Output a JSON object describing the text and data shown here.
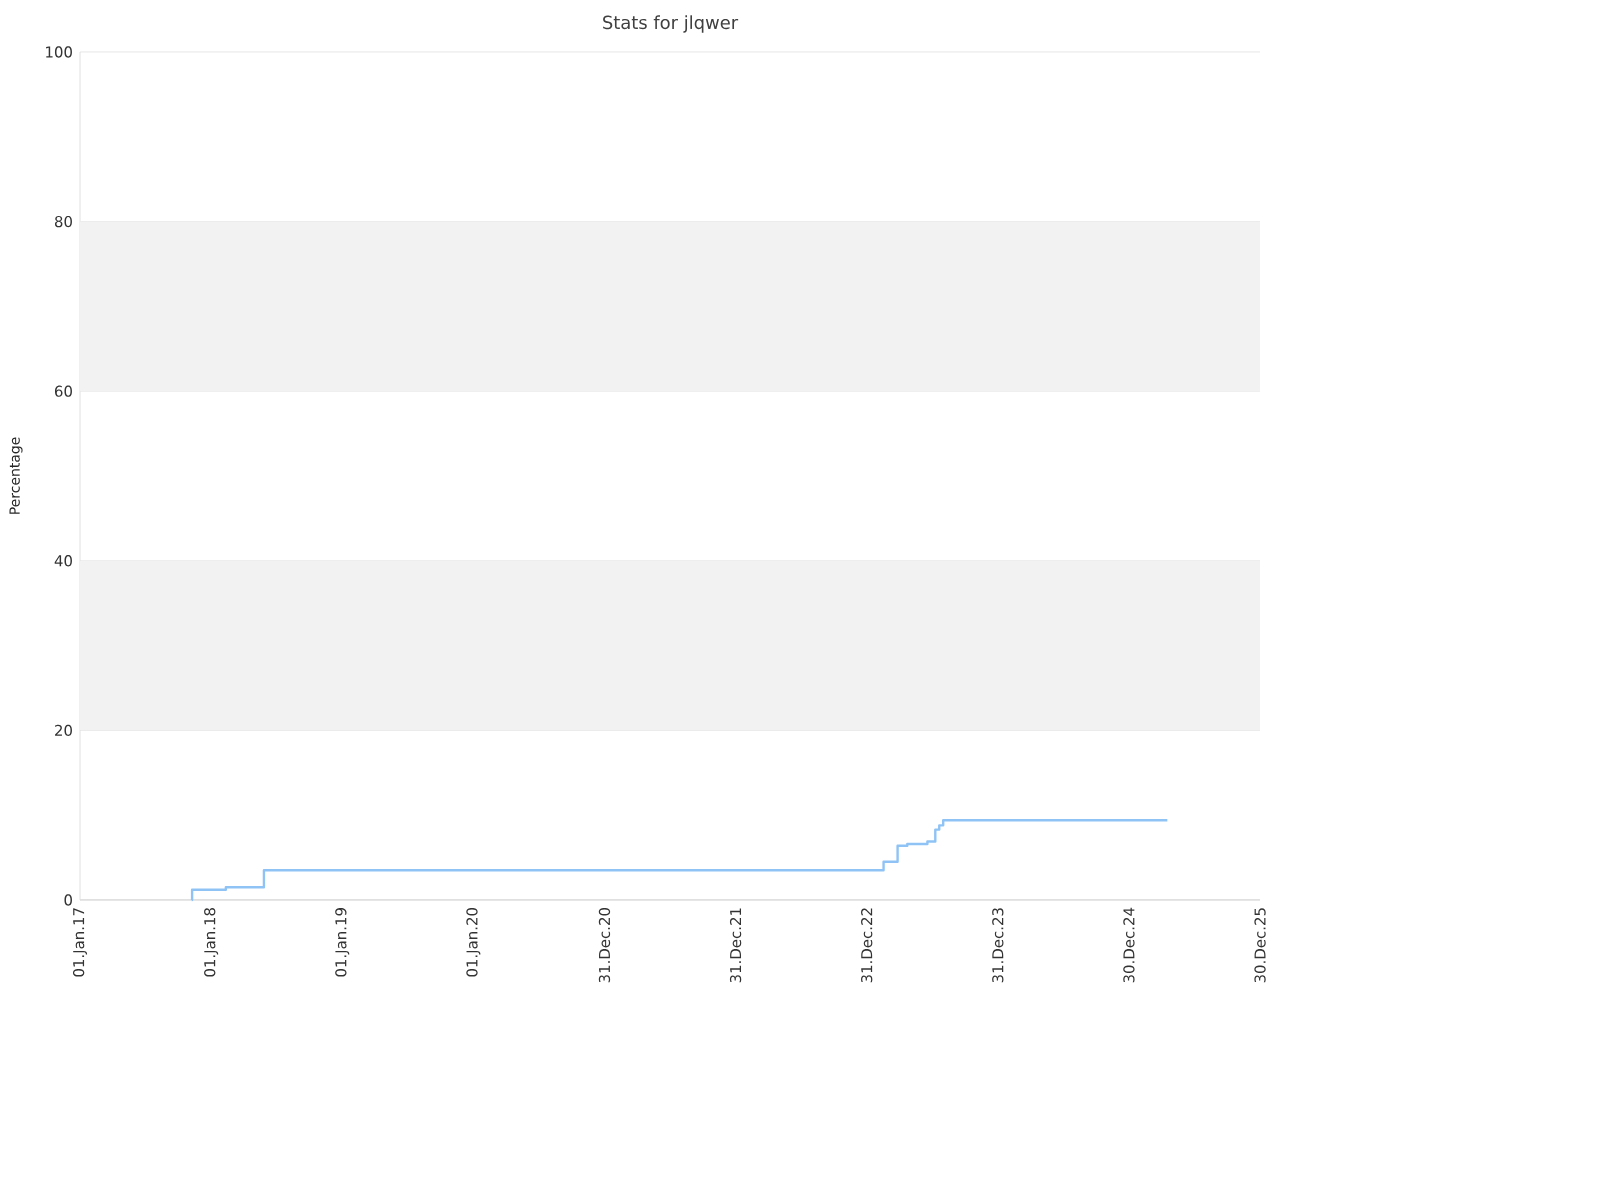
{
  "chart_data": {
    "type": "step",
    "title": "Stats for jlqwer",
    "ylabel": "Percentage",
    "x": [
      "2017-11-08",
      "2017-11-09",
      "2018-02-11",
      "2018-05-28",
      "2023-02-16",
      "2023-03-27",
      "2023-04-23",
      "2023-06-18",
      "2023-07-10",
      "2023-07-21",
      "2023-08-01",
      "2025-04-16"
    ],
    "series": [
      {
        "color": "#90c3f5",
        "values": [
          0,
          1.2,
          1.5,
          3.5,
          4.5,
          6.4,
          6.6,
          6.9,
          8.3,
          8.8,
          9.4,
          9.4
        ]
      }
    ],
    "xlim": [
      "2017-01-01",
      "2025-12-30"
    ],
    "xticks": [
      {
        "value": "2017-01-01",
        "label": "01.Jan.17"
      },
      {
        "value": "2018-01-01",
        "label": "01.Jan.18"
      },
      {
        "value": "2019-01-01",
        "label": "01.Jan.19"
      },
      {
        "value": "2020-01-01",
        "label": "01.Jan.20"
      },
      {
        "value": "2020-12-31",
        "label": "31.Dec.20"
      },
      {
        "value": "2021-12-31",
        "label": "31.Dec.21"
      },
      {
        "value": "2022-12-31",
        "label": "31.Dec.22"
      },
      {
        "value": "2023-12-31",
        "label": "31.Dec.23"
      },
      {
        "value": "2024-12-30",
        "label": "30.Dec.24"
      },
      {
        "value": "2025-12-30",
        "label": "30.Dec.25"
      }
    ],
    "ylim": [
      0,
      100
    ],
    "yticks": [
      0,
      20,
      40,
      60,
      80,
      100
    ],
    "grid": "y",
    "bands": [
      {
        "axis": "y",
        "from": 20,
        "to": 40,
        "color": "#f2f2f2"
      },
      {
        "axis": "y",
        "from": 60,
        "to": 80,
        "color": "#f2f2f2"
      }
    ]
  }
}
